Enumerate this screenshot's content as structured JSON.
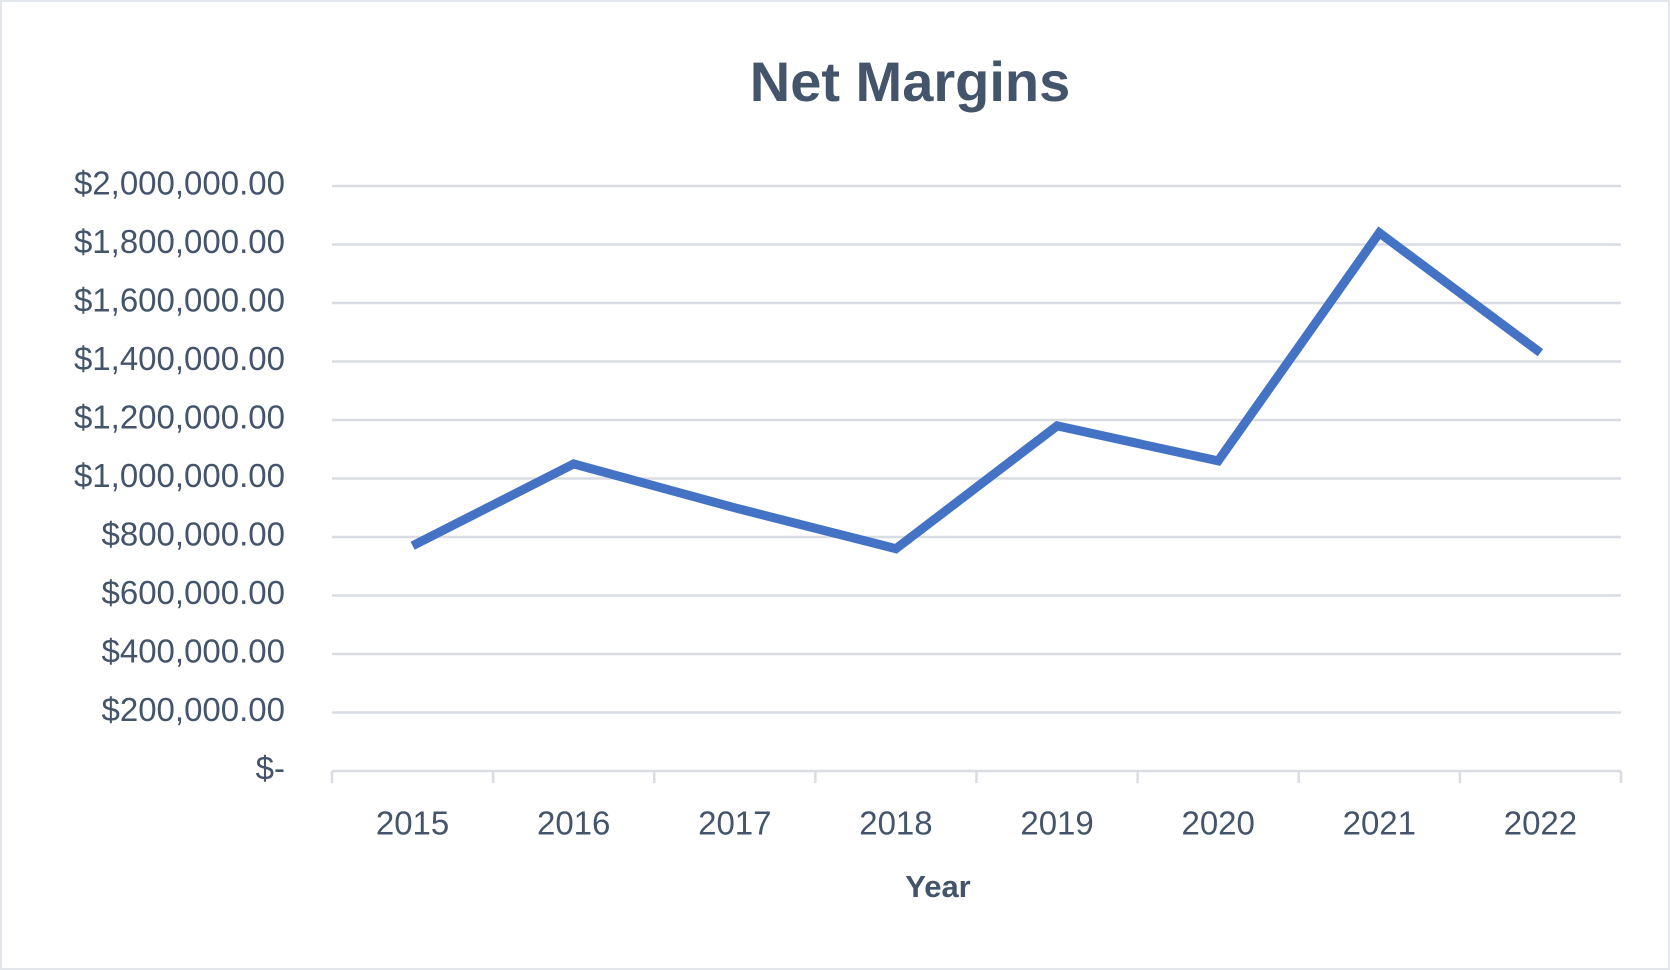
{
  "chart_data": {
    "type": "line",
    "title": "Net Margins",
    "x_label": "Year",
    "categories": [
      "2015",
      "2016",
      "2017",
      "2018",
      "2019",
      "2020",
      "2021",
      "2022"
    ],
    "series": [
      {
        "name": "Net Margins",
        "color": "#4472c4",
        "values": [
          770000,
          1050000,
          900000,
          760000,
          1180000,
          1060000,
          1840000,
          1430000
        ]
      }
    ],
    "ylim": [
      0,
      2000000
    ],
    "yticks": [
      {
        "value": 0,
        "label": "$-"
      },
      {
        "value": 200000,
        "label": "$200,000.00"
      },
      {
        "value": 400000,
        "label": "$400,000.00"
      },
      {
        "value": 600000,
        "label": "$600,000.00"
      },
      {
        "value": 800000,
        "label": "$800,000.00"
      },
      {
        "value": 1000000,
        "label": "$1,000,000.00"
      },
      {
        "value": 1200000,
        "label": "$1,200,000.00"
      },
      {
        "value": 1400000,
        "label": "$1,400,000.00"
      },
      {
        "value": 1600000,
        "label": "$1,600,000.00"
      },
      {
        "value": 1800000,
        "label": "$1,800,000.00"
      },
      {
        "value": 2000000,
        "label": "$2,000,000.00"
      }
    ],
    "grid": true
  }
}
